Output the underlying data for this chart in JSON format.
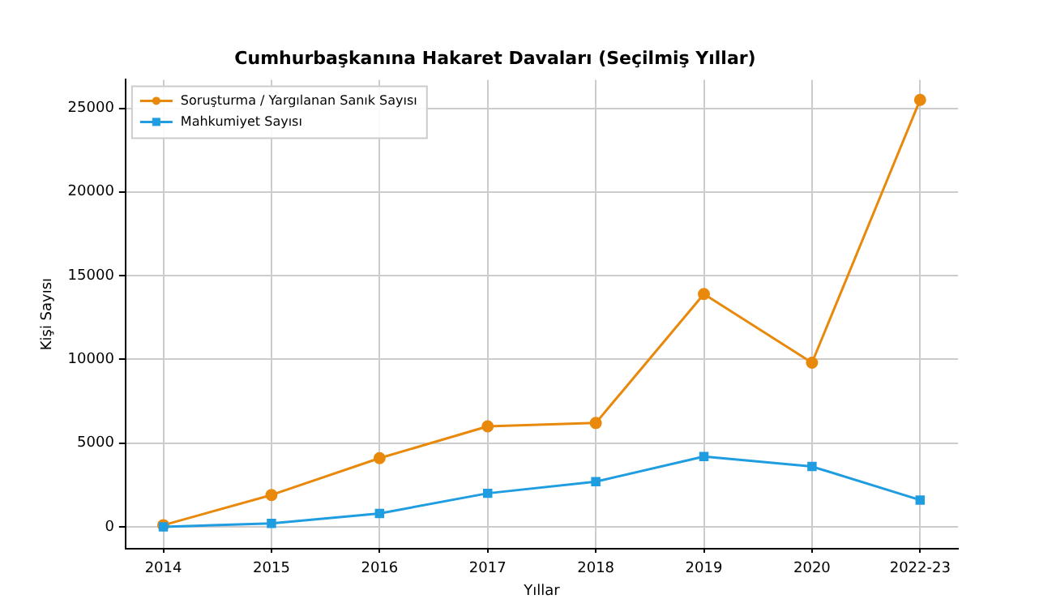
{
  "chart_data": {
    "type": "line",
    "title": "Cumhurbaşkanına Hakaret Davaları (Seçilmiş Yıllar)",
    "xlabel": "Yıllar",
    "ylabel": "Kişi Sayısı",
    "categories": [
      "2014",
      "2015",
      "2016",
      "2017",
      "2018",
      "2019",
      "2020",
      "2022-23"
    ],
    "series": [
      {
        "name": "Soruşturma / Yargılanan Sanık Sayısı",
        "color": "#e8890c",
        "marker": "circle",
        "values": [
          100,
          1900,
          4100,
          6000,
          6200,
          13900,
          9800,
          25500
        ]
      },
      {
        "name": "Mahkumiyet Sayısı",
        "color": "#1f9de0",
        "marker": "square",
        "values": [
          0,
          200,
          800,
          2000,
          2700,
          4200,
          3600,
          1600
        ]
      }
    ],
    "ylim": [
      -1300,
      26700
    ],
    "yticks": [
      0,
      5000,
      10000,
      15000,
      20000,
      25000
    ],
    "grid": true,
    "legend": "top left",
    "line_style": "solid"
  }
}
